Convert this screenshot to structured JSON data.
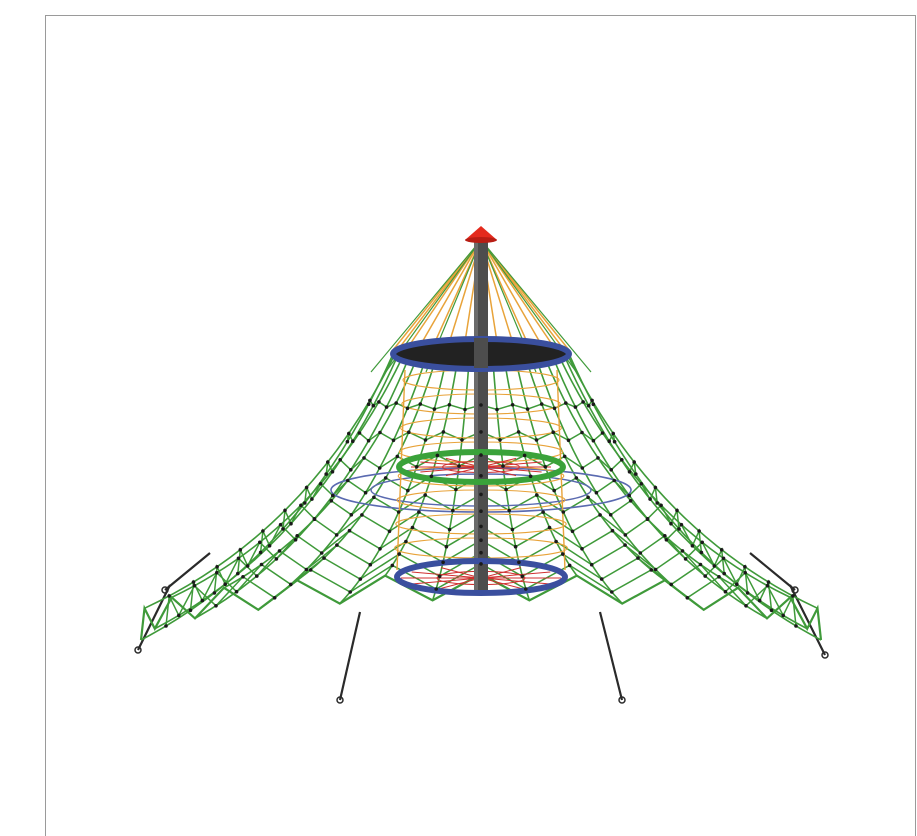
{
  "image": {
    "subject": "rope-pyramid-climbing-net",
    "icon": "climbing-net-illustration"
  },
  "colors": {
    "net_green": "#3f9a3a",
    "knot": "#1a1a1a",
    "ring_blue": "#3a4f9e",
    "ring_green": "#3aa23a",
    "mast": "#4d4d4d",
    "cap_red": "#e42a1d",
    "rope_orange": "#e8a33a",
    "inner_red": "#d03030",
    "inner_blue": "#5a6ab0",
    "frame_border": "#9a9a9a",
    "background": "#ffffff"
  }
}
